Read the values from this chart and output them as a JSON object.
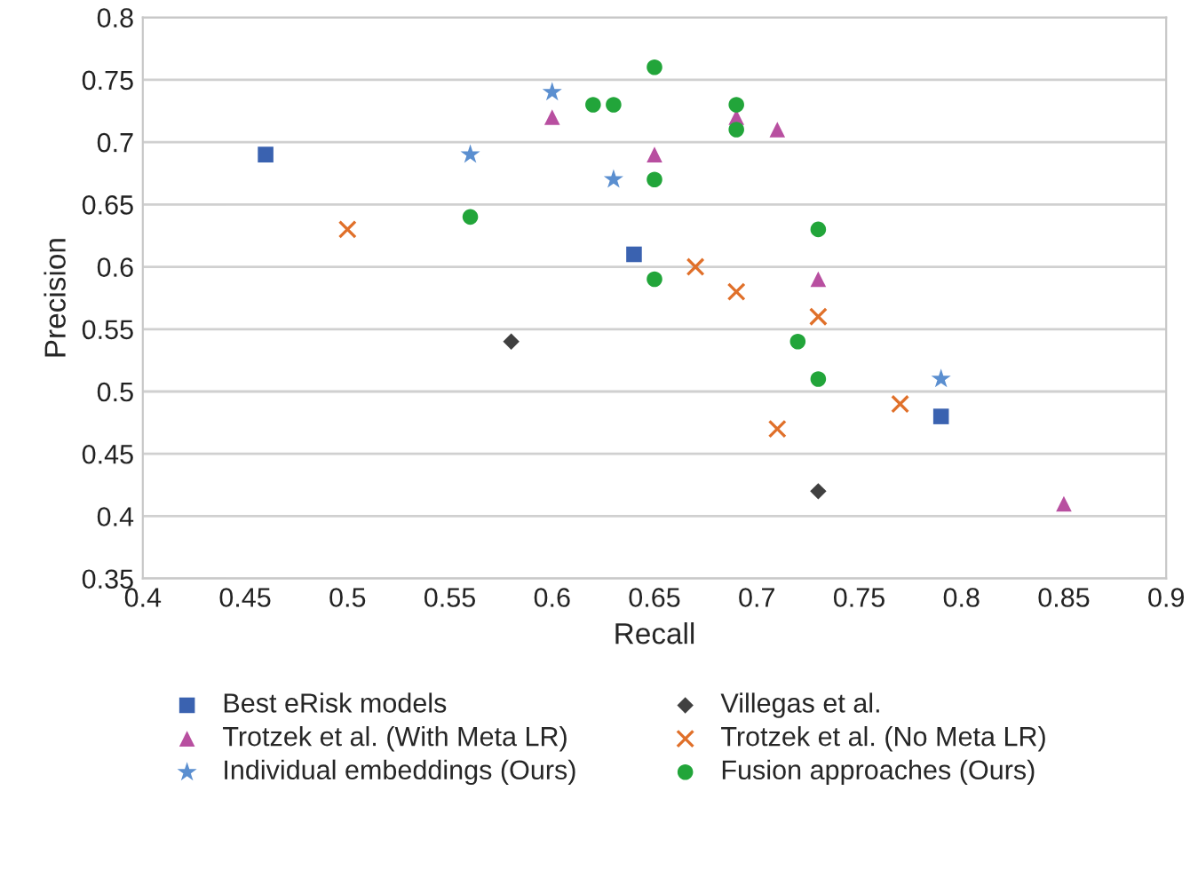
{
  "chart_data": {
    "type": "scatter",
    "xlabel": "Recall",
    "ylabel": "Precision",
    "xlim": [
      0.4,
      0.9
    ],
    "xticks": [
      {
        "value": 0.4,
        "label": "0.4"
      },
      {
        "value": 0.45,
        "label": "0.45"
      },
      {
        "value": 0.5,
        "label": "0.5"
      },
      {
        "value": 0.55,
        "label": "0.55"
      },
      {
        "value": 0.6,
        "label": "0.6"
      },
      {
        "value": 0.65,
        "label": "0.65"
      },
      {
        "value": 0.7,
        "label": "0.7"
      },
      {
        "value": 0.75,
        "label": "0.75"
      },
      {
        "value": 0.8,
        "label": "0.8"
      },
      {
        "value": 0.85,
        "label": "0.85"
      },
      {
        "value": 0.9,
        "label": "0.9"
      }
    ],
    "ylim": [
      0.35,
      0.8
    ],
    "yticks": [
      {
        "value": 0.35,
        "label": "0.35"
      },
      {
        "value": 0.4,
        "label": "0.4"
      },
      {
        "value": 0.45,
        "label": "0.45"
      },
      {
        "value": 0.5,
        "label": "0.5"
      },
      {
        "value": 0.55,
        "label": "0.55"
      },
      {
        "value": 0.6,
        "label": "0.6"
      },
      {
        "value": 0.65,
        "label": "0.65"
      },
      {
        "value": 0.7,
        "label": "0.7"
      },
      {
        "value": 0.75,
        "label": "0.75"
      },
      {
        "value": 0.8,
        "label": "0.8"
      }
    ],
    "grid": "y",
    "legend": "bottom",
    "series": [
      {
        "name": "Best eRisk models",
        "color": "#3a62b0",
        "marker": "square",
        "x": [
          0.46,
          0.64,
          0.79
        ],
        "values": [
          0.69,
          0.61,
          0.48
        ]
      },
      {
        "name": "Villegas et al.",
        "color": "#404040",
        "marker": "diamond",
        "x": [
          0.58,
          0.73
        ],
        "values": [
          0.54,
          0.42
        ]
      },
      {
        "name": "Trotzek et al. (With Meta LR)",
        "color": "#b84fa0",
        "marker": "triangle",
        "x": [
          0.6,
          0.65,
          0.69,
          0.71,
          0.73,
          0.85
        ],
        "values": [
          0.72,
          0.69,
          0.72,
          0.71,
          0.59,
          0.41
        ]
      },
      {
        "name": "Trotzek et al. (No Meta LR)",
        "color": "#e0702a",
        "marker": "cross",
        "x": [
          0.5,
          0.67,
          0.69,
          0.73,
          0.71,
          0.77
        ],
        "values": [
          0.63,
          0.6,
          0.58,
          0.56,
          0.47,
          0.49
        ]
      },
      {
        "name": "Individual embeddings (Ours)",
        "color": "#5b8fd0",
        "marker": "star",
        "x": [
          0.6,
          0.56,
          0.63,
          0.79
        ],
        "values": [
          0.74,
          0.69,
          0.67,
          0.51
        ]
      },
      {
        "name": "Fusion approaches (Ours)",
        "color": "#22a53a",
        "marker": "circle",
        "x": [
          0.65,
          0.62,
          0.63,
          0.65,
          0.56,
          0.65,
          0.69,
          0.69,
          0.73,
          0.72,
          0.73
        ],
        "values": [
          0.76,
          0.73,
          0.73,
          0.67,
          0.64,
          0.59,
          0.73,
          0.71,
          0.63,
          0.54,
          0.51
        ]
      }
    ]
  }
}
